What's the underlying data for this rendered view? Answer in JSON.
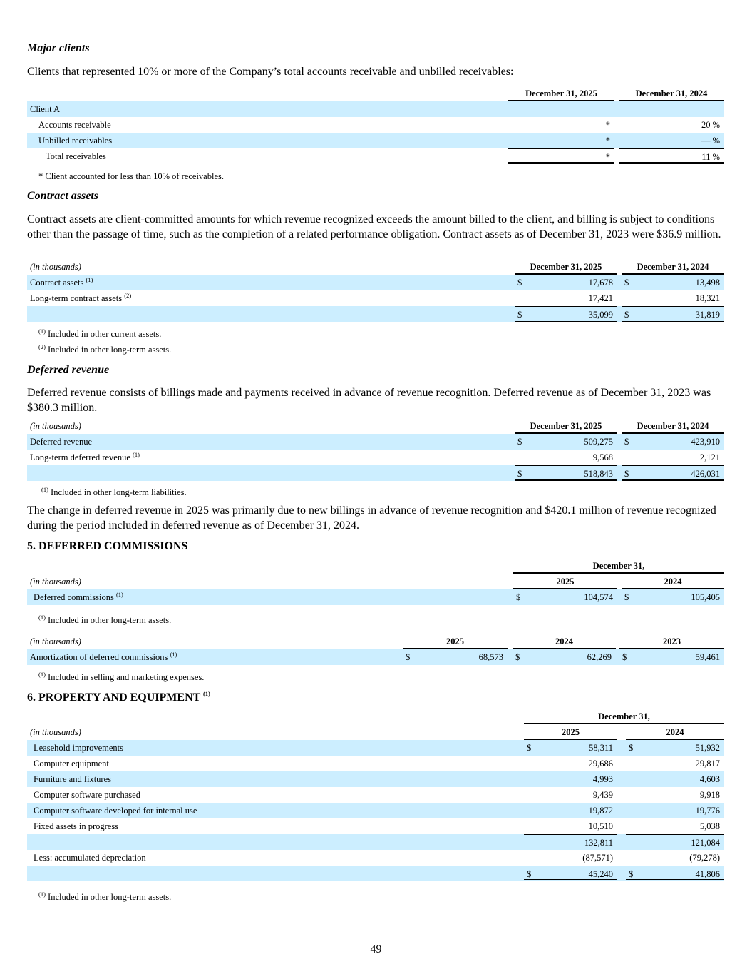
{
  "major_clients": {
    "heading": "Major clients",
    "intro": "Clients that represented 10% or more of the Company’s total accounts receivable and unbilled receivables:",
    "table": {
      "label_header": "",
      "headers": [
        "December 31, 2025",
        "December 31, 2024"
      ],
      "rows": [
        {
          "label": "Client A",
          "vals": [
            "",
            ""
          ]
        },
        {
          "label": "Accounts receivable",
          "vals": [
            "*",
            "20 %"
          ]
        },
        {
          "label": "Unbilled receivables",
          "vals": [
            "*",
            "— %"
          ]
        },
        {
          "label": "Total receivables",
          "vals": [
            "*",
            "11 %"
          ]
        }
      ]
    },
    "footnote": "* Client accounted for less than 10% of receivables."
  },
  "contract_assets": {
    "heading": "Contract assets",
    "intro": "Contract assets are client-committed amounts for which revenue recognized exceeds the amount billed to the client, and billing is subject to conditions other than the passage of time, such as the completion of a related performance obligation. Contract assets as of December 31, 2023 were $36.9 million.",
    "table": {
      "label_header": "(in thousands)",
      "headers": [
        "December 31, 2025",
        "December 31, 2024"
      ],
      "rows": [
        {
          "label": "Contract assets",
          "sup": "(1)",
          "cur": [
            "$",
            "$"
          ],
          "vals": [
            "17,678",
            "13,498"
          ]
        },
        {
          "label": "Long-term contract assets",
          "sup": "(2)",
          "vals": [
            "17,421",
            "18,321"
          ]
        },
        {
          "label": "",
          "cur": [
            "$",
            "$"
          ],
          "vals": [
            "35,099",
            "31,819"
          ]
        }
      ]
    },
    "footnotes": [
      {
        "sup": "(1)",
        "text": " Included in other current assets."
      },
      {
        "sup": "(2)",
        "text": " Included in other long-term assets."
      }
    ]
  },
  "deferred_revenue": {
    "heading": "Deferred revenue",
    "intro": "Deferred revenue consists of billings made and payments received in advance of revenue recognition. Deferred revenue as of December 31, 2023 was $380.3 million.",
    "table": {
      "label_header": "(in thousands)",
      "headers": [
        "December 31, 2025",
        "December 31, 2024"
      ],
      "rows": [
        {
          "label": "Deferred revenue",
          "cur": [
            "$",
            "$"
          ],
          "vals": [
            "509,275",
            "423,910"
          ]
        },
        {
          "label": "Long-term deferred revenue",
          "sup": "(1)",
          "vals": [
            "9,568",
            "2,121"
          ]
        },
        {
          "label": "",
          "cur": [
            "$",
            "$"
          ],
          "vals": [
            "518,843",
            "426,031"
          ]
        }
      ]
    },
    "footnotes": [
      {
        "sup": "(1)",
        "text": " Included in other long-term liabilities."
      }
    ],
    "change_note": "The change in deferred revenue in 2025 was primarily due to new billings in advance of revenue recognition and $420.1 million of revenue recognized during the period included in deferred revenue as of December 31, 2024."
  },
  "deferred_commissions": {
    "heading": "5. DEFERRED COMMISSIONS",
    "table1": {
      "group_header": "December 31,",
      "label_header": "(in thousands)",
      "headers": [
        "2025",
        "2024"
      ],
      "rows": [
        {
          "label": "Deferred commissions",
          "sup": "(1)",
          "cur": [
            "$",
            "$"
          ],
          "vals": [
            "104,574",
            "105,405"
          ]
        }
      ]
    },
    "footnote1": {
      "sup": "(1)",
      "text": " Included in other long-term assets."
    },
    "table2": {
      "label_header": "(in thousands)",
      "headers": [
        "2025",
        "2024",
        "2023"
      ],
      "rows": [
        {
          "label": "Amortization of deferred commissions",
          "sup": "(1)",
          "cur": [
            "$",
            "$",
            "$"
          ],
          "vals": [
            "68,573",
            "62,269",
            "59,461"
          ]
        }
      ]
    },
    "footnote2": {
      "sup": "(1)",
      "text": " Included in selling and marketing expenses."
    }
  },
  "property_equipment": {
    "heading": "6. PROPERTY AND EQUIPMENT",
    "heading_sup": "(1)",
    "table": {
      "group_header": "December 31,",
      "label_header": "(in thousands)",
      "headers": [
        "2025",
        "2024"
      ],
      "rows": [
        {
          "label": "Leasehold improvements",
          "cur": [
            "$",
            "$"
          ],
          "vals": [
            "58,311",
            "51,932"
          ]
        },
        {
          "label": "Computer equipment",
          "vals": [
            "29,686",
            "29,817"
          ]
        },
        {
          "label": "Furniture and fixtures",
          "vals": [
            "4,993",
            "4,603"
          ]
        },
        {
          "label": "Computer software purchased",
          "vals": [
            "9,439",
            "9,918"
          ]
        },
        {
          "label": "Computer software developed for internal use",
          "vals": [
            "19,872",
            "19,776"
          ]
        },
        {
          "label": "Fixed assets in progress",
          "vals": [
            "10,510",
            "5,038"
          ]
        },
        {
          "label": "",
          "vals": [
            "132,811",
            "121,084"
          ]
        },
        {
          "label": "Less: accumulated depreciation",
          "vals": [
            "(87,571)",
            "(79,278)"
          ]
        },
        {
          "label": "",
          "cur": [
            "$",
            "$"
          ],
          "vals": [
            "45,240",
            "41,806"
          ]
        }
      ]
    },
    "footnote": {
      "sup": "(1)",
      "text": " Included in other long-term assets."
    }
  },
  "page_number": "49"
}
